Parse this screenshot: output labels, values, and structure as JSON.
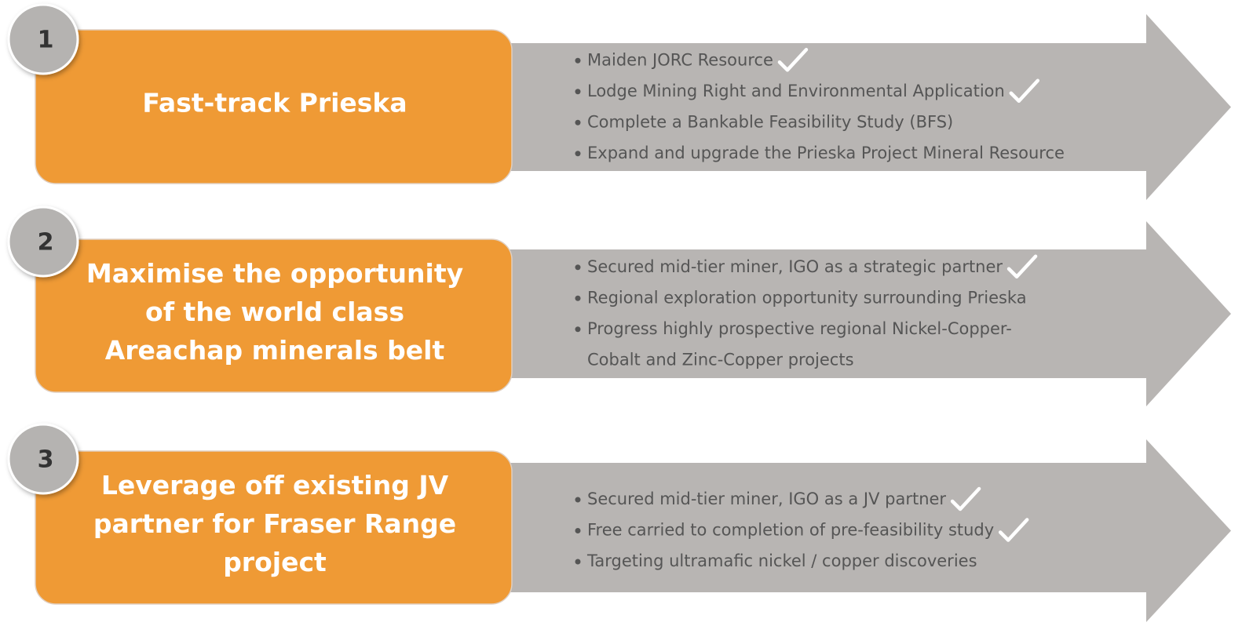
{
  "rows": [
    {
      "number": "1",
      "title": [
        "Fast-track Prieska"
      ],
      "bullets": [
        {
          "lines": [
            "Maiden JORC Resource"
          ],
          "checked": true
        },
        {
          "lines": [
            "Lodge Mining Right and Environmental Application"
          ],
          "checked": true
        },
        {
          "lines": [
            "Complete a Bankable Feasibility Study (BFS)"
          ],
          "checked": false
        },
        {
          "lines": [
            "Expand and upgrade the Prieska Project Mineral Resource"
          ],
          "checked": false
        }
      ]
    },
    {
      "number": "2",
      "title": [
        "Maximise the opportunity",
        "of the world class",
        "Areachap minerals belt"
      ],
      "bullets": [
        {
          "lines": [
            "Secured mid-tier miner, IGO as a strategic partner"
          ],
          "checked": true
        },
        {
          "lines": [
            "Regional exploration opportunity surrounding Prieska"
          ],
          "checked": false
        },
        {
          "lines": [
            "Progress highly prospective regional Nickel-Copper-",
            "Cobalt and Zinc-Copper projects"
          ],
          "checked": false
        }
      ]
    },
    {
      "number": "3",
      "title": [
        "Leverage off existing JV",
        "partner for Fraser Range",
        "project"
      ],
      "bullets": [
        {
          "lines": [
            "Secured mid-tier miner, IGO as a JV partner"
          ],
          "checked": true
        },
        {
          "lines": [
            "Free carried to completion of pre-feasibility study"
          ],
          "checked": true
        },
        {
          "lines": [
            "Targeting ultramafic nickel / copper discoveries"
          ],
          "checked": false
        }
      ]
    }
  ]
}
